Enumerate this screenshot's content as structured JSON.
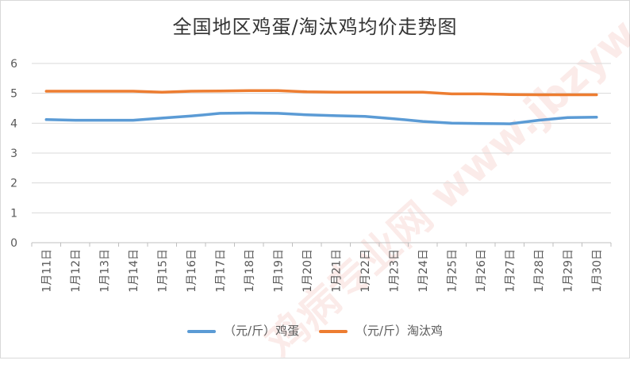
{
  "chart_data": {
    "type": "line",
    "title": "全国地区鸡蛋/淘汰鸡均价走势图",
    "xlabel": "",
    "ylabel": "",
    "categories": [
      "1月11日",
      "1月12日",
      "1月13日",
      "1月14日",
      "1月15日",
      "1月16日",
      "1月17日",
      "1月18日",
      "1月19日",
      "1月20日",
      "1月21日",
      "1月22日",
      "1月23日",
      "1月24日",
      "1月25日",
      "1月26日",
      "1月27日",
      "1月28日",
      "1月29日",
      "1月30日"
    ],
    "y_ticks": [
      "0",
      "1",
      "2",
      "3",
      "4",
      "5",
      "6"
    ],
    "ylim": [
      0,
      6
    ],
    "grid": true,
    "legend_position": "bottom",
    "series": [
      {
        "name": "（元/斤）鸡蛋",
        "color": "#5b9bd5",
        "values": [
          4.12,
          4.1,
          4.1,
          4.1,
          4.17,
          4.24,
          4.33,
          4.34,
          4.33,
          4.28,
          4.25,
          4.23,
          4.15,
          4.06,
          4.0,
          3.99,
          3.98,
          4.1,
          4.19,
          4.2
        ]
      },
      {
        "name": "（元/斤）淘汰鸡",
        "color": "#ed7d31",
        "values": [
          5.07,
          5.07,
          5.07,
          5.07,
          5.04,
          5.07,
          5.08,
          5.09,
          5.09,
          5.05,
          5.04,
          5.04,
          5.04,
          5.04,
          4.98,
          4.98,
          4.96,
          4.95,
          4.95,
          4.95
        ]
      }
    ]
  },
  "watermark": "鸡病专业网 www.jbzyw.com"
}
